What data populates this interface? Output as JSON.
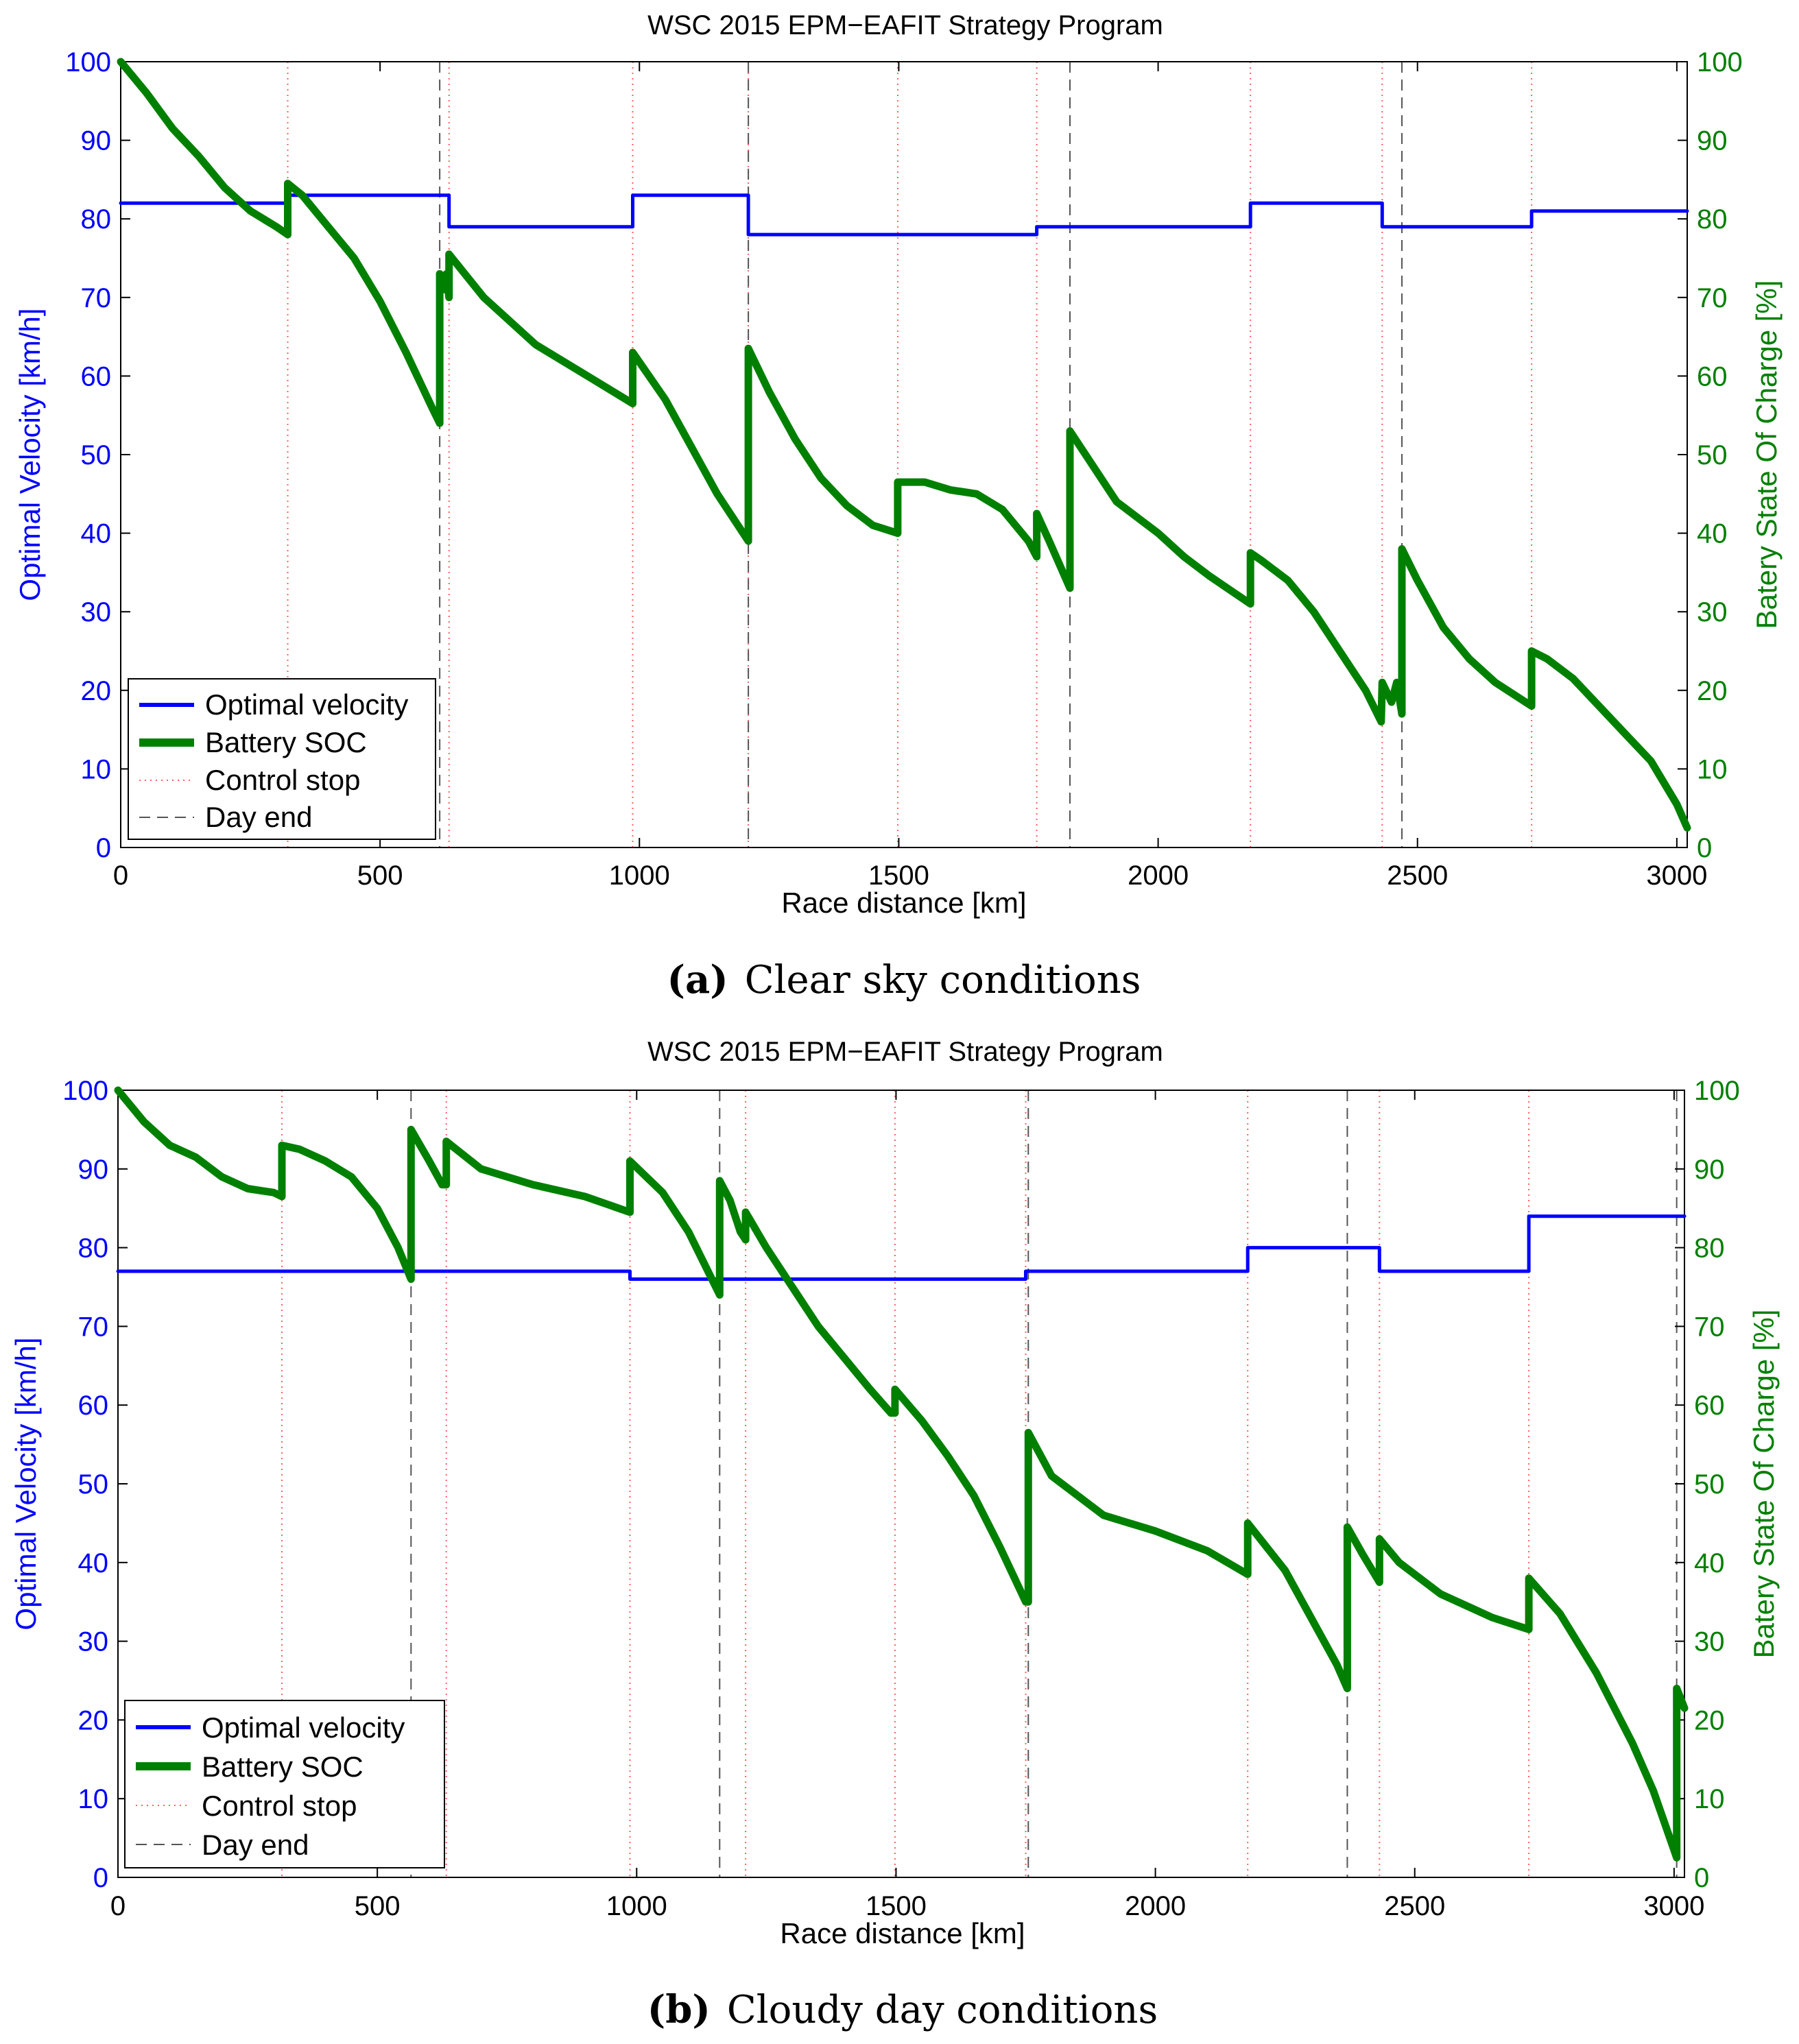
{
  "chart_data": [
    {
      "type": "line",
      "title": "WSC 2015 EPM−EAFIT Strategy Program",
      "xlabel": "Race distance [km]",
      "ylabel_left": "Optimal Velocity [km/h]",
      "ylabel_right": "Batery State Of Charge [%]",
      "xlim": [
        0,
        3020
      ],
      "ylim_left": [
        0,
        100
      ],
      "ylim_right": [
        0,
        100
      ],
      "x_ticks": [
        "0",
        "500",
        "1000",
        "1500",
        "2000",
        "2500",
        "3000"
      ],
      "y_ticks_left": [
        "0",
        "10",
        "20",
        "30",
        "40",
        "50",
        "60",
        "70",
        "80",
        "90",
        "100"
      ],
      "y_ticks_right": [
        "0",
        "10",
        "20",
        "30",
        "40",
        "50",
        "60",
        "70",
        "80",
        "90",
        "100"
      ],
      "caption_label": "(a)",
      "caption_text": "Clear sky conditions",
      "legend": [
        "Optimal velocity",
        "Battery SOC",
        "Control stop",
        "Day end"
      ],
      "legend_position": "bottom-left",
      "colors": {
        "velocity": "#0000ff",
        "soc": "#008000",
        "control_stop": "#ff6060",
        "day_end": "#555555"
      },
      "control_stops_km": [
        322,
        633,
        987,
        1210,
        1498,
        1766,
        2178,
        2432,
        2720
      ],
      "day_end_km": [
        615,
        1210,
        1830,
        2470
      ],
      "series": [
        {
          "name": "Optimal velocity",
          "axis": "left",
          "values": [
            [
              0,
              82
            ],
            [
              322,
              82
            ],
            [
              322,
              83
            ],
            [
              633,
              83
            ],
            [
              633,
              79
            ],
            [
              987,
              79
            ],
            [
              987,
              83
            ],
            [
              1210,
              83
            ],
            [
              1210,
              78
            ],
            [
              1766,
              78
            ],
            [
              1766,
              79
            ],
            [
              2178,
              79
            ],
            [
              2178,
              82
            ],
            [
              2432,
              82
            ],
            [
              2432,
              79
            ],
            [
              2720,
              79
            ],
            [
              2720,
              81
            ],
            [
              3020,
              81
            ]
          ]
        },
        {
          "name": "Battery SOC",
          "axis": "right",
          "values": [
            [
              0,
              100
            ],
            [
              50,
              96
            ],
            [
              100,
              91.5
            ],
            [
              150,
              88
            ],
            [
              200,
              84
            ],
            [
              250,
              81
            ],
            [
              300,
              79
            ],
            [
              322,
              78
            ],
            [
              322,
              84.5
            ],
            [
              350,
              83
            ],
            [
              400,
              79
            ],
            [
              450,
              75
            ],
            [
              500,
              69.5
            ],
            [
              550,
              63
            ],
            [
              600,
              56
            ],
            [
              615,
              54
            ],
            [
              615,
              73
            ],
            [
              625,
              71
            ],
            [
              628,
              73
            ],
            [
              633,
              70
            ],
            [
              633,
              75.5
            ],
            [
              700,
              70
            ],
            [
              800,
              64
            ],
            [
              900,
              60
            ],
            [
              987,
              56.5
            ],
            [
              987,
              63
            ],
            [
              1050,
              57
            ],
            [
              1100,
              51
            ],
            [
              1150,
              45
            ],
            [
              1210,
              39
            ],
            [
              1210,
              63.5
            ],
            [
              1250,
              58
            ],
            [
              1300,
              52
            ],
            [
              1350,
              47
            ],
            [
              1400,
              43.5
            ],
            [
              1450,
              41
            ],
            [
              1498,
              40
            ],
            [
              1498,
              46.5
            ],
            [
              1550,
              46.5
            ],
            [
              1600,
              45.5
            ],
            [
              1650,
              45
            ],
            [
              1700,
              43
            ],
            [
              1750,
              39
            ],
            [
              1766,
              37
            ],
            [
              1766,
              42.5
            ],
            [
              1790,
              39
            ],
            [
              1830,
              33
            ],
            [
              1830,
              53
            ],
            [
              1870,
              49
            ],
            [
              1920,
              44
            ],
            [
              2000,
              40
            ],
            [
              2050,
              37
            ],
            [
              2100,
              34.5
            ],
            [
              2178,
              31
            ],
            [
              2178,
              37.5
            ],
            [
              2200,
              36.5
            ],
            [
              2250,
              34
            ],
            [
              2300,
              30
            ],
            [
              2350,
              25
            ],
            [
              2400,
              20
            ],
            [
              2430,
              16
            ],
            [
              2432,
              21
            ],
            [
              2450,
              18.5
            ],
            [
              2460,
              21
            ],
            [
              2470,
              17
            ],
            [
              2470,
              38
            ],
            [
              2500,
              34
            ],
            [
              2550,
              28
            ],
            [
              2600,
              24
            ],
            [
              2650,
              21
            ],
            [
              2720,
              18
            ],
            [
              2720,
              25
            ],
            [
              2750,
              24
            ],
            [
              2800,
              21.5
            ],
            [
              2850,
              18
            ],
            [
              2900,
              14.5
            ],
            [
              2950,
              11
            ],
            [
              3000,
              5.5
            ],
            [
              3020,
              2.5
            ]
          ]
        }
      ]
    },
    {
      "type": "line",
      "title": "WSC 2015 EPM−EAFIT Strategy Program",
      "xlabel": "Race distance [km]",
      "ylabel_left": "Optimal Velocity [km/h]",
      "ylabel_right": "Batery State Of Charge [%]",
      "xlim": [
        0,
        3020
      ],
      "ylim_left": [
        0,
        100
      ],
      "ylim_right": [
        0,
        100
      ],
      "x_ticks": [
        "0",
        "500",
        "1000",
        "1500",
        "2000",
        "2500",
        "3000"
      ],
      "y_ticks_left": [
        "0",
        "10",
        "20",
        "30",
        "40",
        "50",
        "60",
        "70",
        "80",
        "90",
        "100"
      ],
      "y_ticks_right": [
        "0",
        "10",
        "20",
        "30",
        "40",
        "50",
        "60",
        "70",
        "80",
        "90",
        "100"
      ],
      "caption_label": "(b)",
      "caption_text": "Cloudy day conditions",
      "legend": [
        "Optimal velocity",
        "Battery SOC",
        "Control stop",
        "Day end"
      ],
      "legend_position": "bottom-left",
      "colors": {
        "velocity": "#0000ff",
        "soc": "#008000",
        "control_stop": "#ff6060",
        "day_end": "#555555"
      },
      "control_stops_km": [
        316,
        633,
        987,
        1210,
        1498,
        1750,
        2178,
        2432,
        2720
      ],
      "day_end_km": [
        565,
        1160,
        1755,
        2370,
        3005
      ],
      "series": [
        {
          "name": "Optimal velocity",
          "axis": "left",
          "values": [
            [
              0,
              77
            ],
            [
              987,
              77
            ],
            [
              987,
              76
            ],
            [
              1750,
              76
            ],
            [
              1750,
              77
            ],
            [
              2178,
              77
            ],
            [
              2178,
              80
            ],
            [
              2432,
              80
            ],
            [
              2432,
              77
            ],
            [
              2720,
              77
            ],
            [
              2720,
              84
            ],
            [
              3020,
              84
            ]
          ]
        },
        {
          "name": "Battery SOC",
          "axis": "right",
          "values": [
            [
              0,
              100
            ],
            [
              50,
              96
            ],
            [
              100,
              93
            ],
            [
              150,
              91.5
            ],
            [
              200,
              89
            ],
            [
              250,
              87.5
            ],
            [
              300,
              87
            ],
            [
              316,
              86.5
            ],
            [
              316,
              93
            ],
            [
              350,
              92.5
            ],
            [
              400,
              91
            ],
            [
              450,
              89
            ],
            [
              500,
              85
            ],
            [
              540,
              80
            ],
            [
              565,
              76
            ],
            [
              565,
              95
            ],
            [
              600,
              91
            ],
            [
              625,
              88
            ],
            [
              633,
              88
            ],
            [
              633,
              93.5
            ],
            [
              700,
              90
            ],
            [
              800,
              88
            ],
            [
              900,
              86.5
            ],
            [
              987,
              84.5
            ],
            [
              987,
              91
            ],
            [
              1050,
              87
            ],
            [
              1100,
              82
            ],
            [
              1160,
              74
            ],
            [
              1160,
              88.5
            ],
            [
              1180,
              86
            ],
            [
              1200,
              82
            ],
            [
              1210,
              81
            ],
            [
              1210,
              84.5
            ],
            [
              1250,
              80
            ],
            [
              1300,
              75
            ],
            [
              1350,
              70
            ],
            [
              1400,
              66
            ],
            [
              1450,
              62
            ],
            [
              1490,
              59
            ],
            [
              1498,
              59
            ],
            [
              1498,
              62
            ],
            [
              1550,
              58
            ],
            [
              1600,
              53.5
            ],
            [
              1650,
              48.5
            ],
            [
              1700,
              42
            ],
            [
              1750,
              35
            ],
            [
              1755,
              35
            ],
            [
              1755,
              56.5
            ],
            [
              1800,
              51
            ],
            [
              1900,
              46
            ],
            [
              2000,
              44
            ],
            [
              2100,
              41.5
            ],
            [
              2178,
              38.5
            ],
            [
              2178,
              45
            ],
            [
              2250,
              39
            ],
            [
              2300,
              33
            ],
            [
              2350,
              27
            ],
            [
              2370,
              24
            ],
            [
              2370,
              44.5
            ],
            [
              2400,
              41
            ],
            [
              2432,
              37.5
            ],
            [
              2432,
              43
            ],
            [
              2470,
              40
            ],
            [
              2550,
              36
            ],
            [
              2650,
              33
            ],
            [
              2720,
              31.5
            ],
            [
              2720,
              38
            ],
            [
              2780,
              33.5
            ],
            [
              2850,
              26
            ],
            [
              2920,
              17
            ],
            [
              2960,
              11
            ],
            [
              3005,
              2.5
            ],
            [
              3005,
              24
            ],
            [
              3020,
              21.5
            ]
          ]
        }
      ]
    }
  ]
}
